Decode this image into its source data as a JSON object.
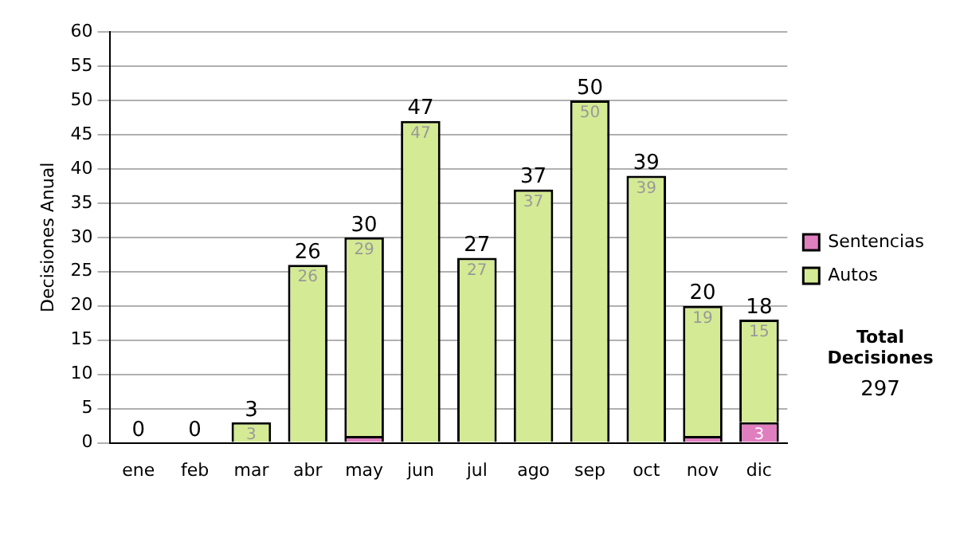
{
  "chart_data": {
    "type": "bar",
    "stacked": true,
    "ylabel": "Decisiones Anual",
    "categories": [
      "ene",
      "feb",
      "mar",
      "abr",
      "may",
      "jun",
      "jul",
      "ago",
      "sep",
      "oct",
      "nov",
      "dic"
    ],
    "series": [
      {
        "name": "Sentencias",
        "color": "#e07fc0",
        "values": [
          0,
          0,
          0,
          0,
          1,
          0,
          0,
          0,
          0,
          0,
          1,
          3
        ],
        "value_labels": [
          null,
          null,
          null,
          null,
          null,
          null,
          null,
          null,
          null,
          null,
          null,
          "3"
        ]
      },
      {
        "name": "Autos",
        "color": "#d4ea94",
        "values": [
          0,
          0,
          3,
          26,
          29,
          47,
          27,
          37,
          50,
          39,
          19,
          15
        ],
        "value_labels": [
          null,
          null,
          "3",
          "26",
          "29",
          "47",
          "27",
          "37",
          "50",
          "39",
          "19",
          "15"
        ]
      }
    ],
    "totals": [
      "0",
      "0",
      "3",
      "26",
      "30",
      "47",
      "27",
      "37",
      "50",
      "39",
      "20",
      "18"
    ],
    "ylim": [
      0,
      60
    ],
    "yticks": [
      0,
      5,
      10,
      15,
      20,
      25,
      30,
      35,
      40,
      45,
      50,
      55,
      60
    ],
    "grid": "y",
    "legend": "right",
    "annotations": [
      "Total Decisiones",
      "297"
    ]
  }
}
